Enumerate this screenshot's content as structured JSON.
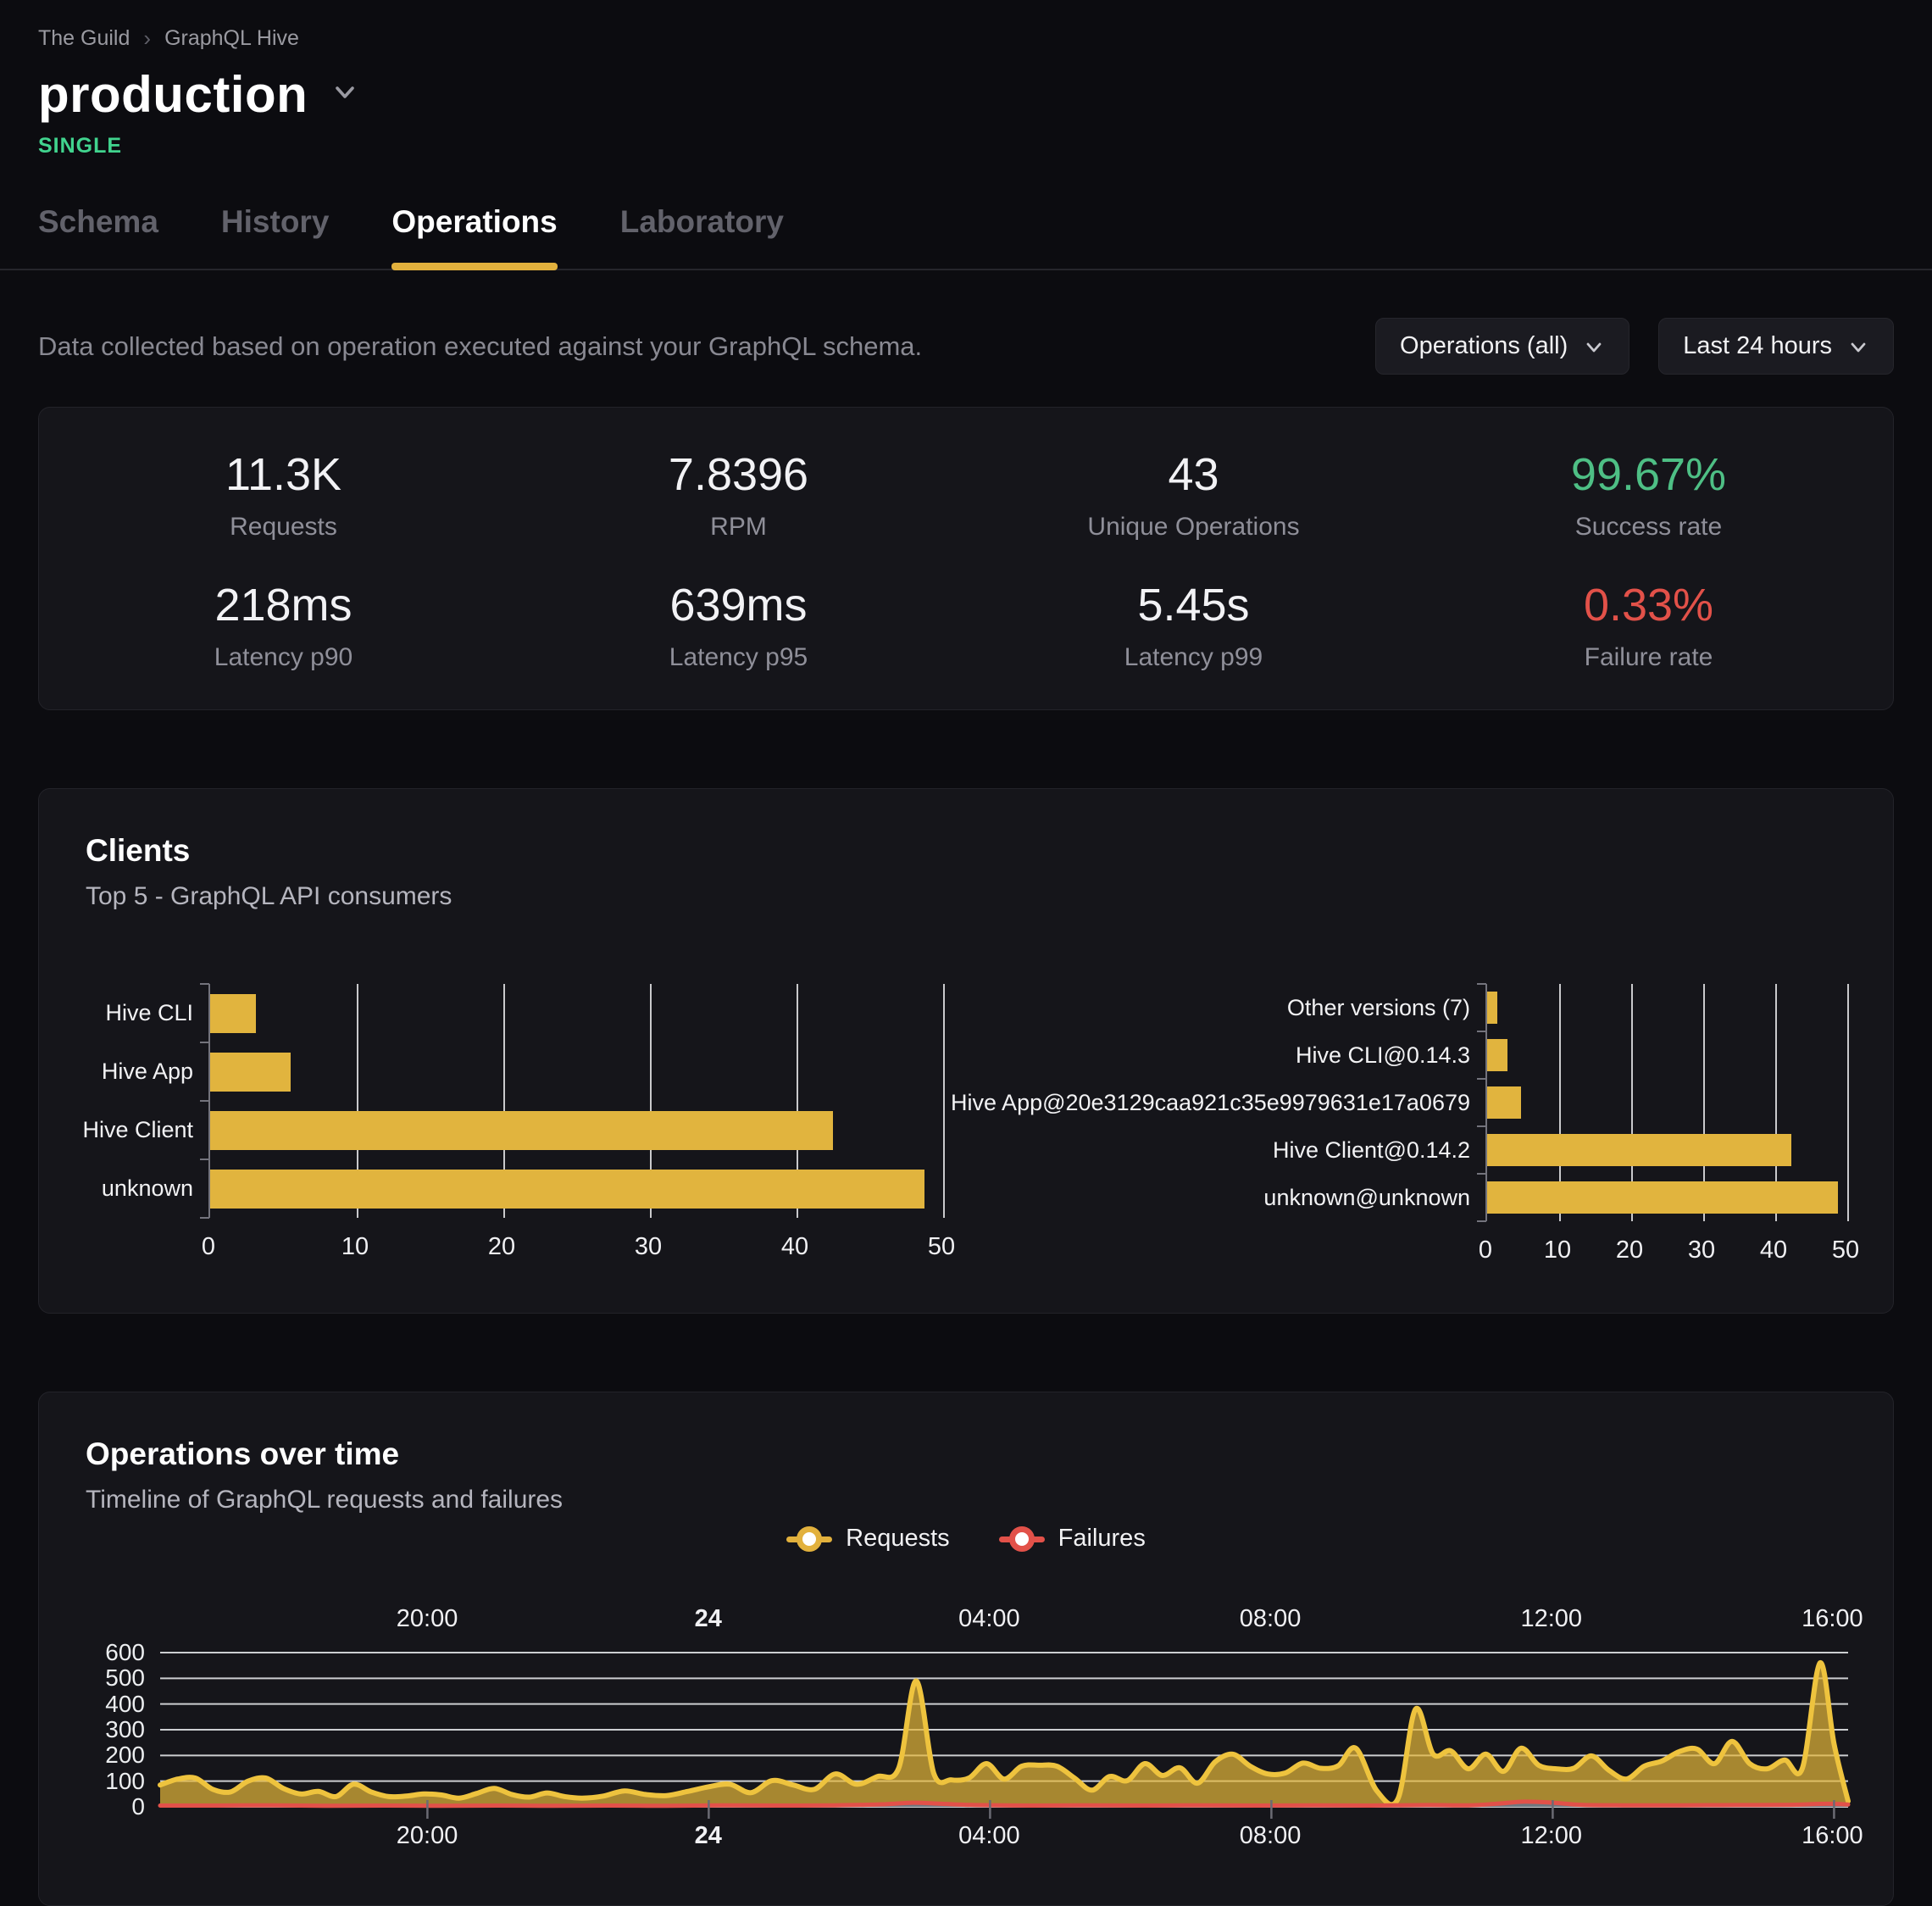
{
  "breadcrumb": {
    "items": [
      "The Guild",
      "GraphQL Hive"
    ],
    "separator": "›"
  },
  "header": {
    "title": "production",
    "badge": "SINGLE"
  },
  "tabs": [
    {
      "label": "Schema",
      "active": false
    },
    {
      "label": "History",
      "active": false
    },
    {
      "label": "Operations",
      "active": true
    },
    {
      "label": "Laboratory",
      "active": false
    }
  ],
  "toolbar": {
    "description": "Data collected based on operation executed against your GraphQL schema.",
    "operations_filter": "Operations (all)",
    "time_range": "Last 24 hours"
  },
  "stats": [
    {
      "value": "11.3K",
      "label": "Requests",
      "color": ""
    },
    {
      "value": "7.8396",
      "label": "RPM",
      "color": ""
    },
    {
      "value": "43",
      "label": "Unique Operations",
      "color": ""
    },
    {
      "value": "99.67%",
      "label": "Success rate",
      "color": "#4ebf85"
    },
    {
      "value": "218ms",
      "label": "Latency p90",
      "color": ""
    },
    {
      "value": "639ms",
      "label": "Latency p95",
      "color": ""
    },
    {
      "value": "5.45s",
      "label": "Latency p99",
      "color": ""
    },
    {
      "value": "0.33%",
      "label": "Failure rate",
      "color": "#e25149"
    }
  ],
  "clients_card": {
    "title": "Clients",
    "subtitle": "Top 5 - GraphQL API consumers"
  },
  "operations_card": {
    "title": "Operations over time",
    "subtitle": "Timeline of GraphQL requests and failures",
    "legend": [
      {
        "label": "Requests",
        "color": "#e2b13d"
      },
      {
        "label": "Failures",
        "color": "#e25149"
      }
    ]
  },
  "colors": {
    "accent_yellow": "#e1b43e",
    "requests_stroke": "#eec33e",
    "requests_fill": "rgba(229,184,58,0.70)",
    "failures_stroke": "#e25149",
    "failures_fill": "rgba(108,118,132,0.95)",
    "success_green": "#4ebf85",
    "badge_green": "#41d48e",
    "gridline": "#eceff1",
    "axis_gray": "#73737c"
  },
  "chart_data": [
    {
      "id": "clients_by_name",
      "type": "bar",
      "orientation": "horizontal",
      "categories": [
        "Hive CLI",
        "Hive App",
        "Hive Client",
        "unknown"
      ],
      "values": [
        3.1,
        5.5,
        42.5,
        48.7
      ],
      "xlim": [
        0,
        50
      ],
      "xticks": [
        0,
        10,
        20,
        30,
        40,
        50
      ],
      "bar_color": "#e1b43e",
      "grid": true,
      "legend_position": "none"
    },
    {
      "id": "clients_by_version",
      "type": "bar",
      "orientation": "horizontal",
      "categories": [
        "Other versions (7)",
        "Hive CLI@0.14.3",
        "Hive App@20e3129caa921c35e9979631e17a0679",
        "Hive Client@0.14.2",
        "unknown@unknown"
      ],
      "values": [
        1.4,
        2.8,
        4.7,
        42.2,
        48.7
      ],
      "xlim": [
        0,
        50
      ],
      "xticks": [
        0,
        10,
        20,
        30,
        40,
        50
      ],
      "bar_color": "#e1b43e",
      "grid": true,
      "legend_position": "none"
    },
    {
      "id": "operations_over_time",
      "type": "area",
      "title": "Operations over time",
      "x_domain_hours": [
        16.2,
        40.2
      ],
      "ylim": [
        0,
        600
      ],
      "yticks": [
        0,
        100,
        200,
        300,
        400,
        500,
        600
      ],
      "xticks": [
        {
          "t": 20,
          "label": "20:00",
          "bold": false
        },
        {
          "t": 24,
          "label": "24",
          "bold": true
        },
        {
          "t": 28,
          "label": "04:00",
          "bold": false
        },
        {
          "t": 32,
          "label": "08:00",
          "bold": false
        },
        {
          "t": 36,
          "label": "12:00",
          "bold": false
        },
        {
          "t": 40,
          "label": "16:00",
          "bold": false
        }
      ],
      "series": [
        {
          "name": "Requests",
          "color": "#eec33e",
          "fill": "rgba(229,184,58,0.70)",
          "points": [
            [
              16.2,
              85
            ],
            [
              16.45,
              108
            ],
            [
              16.7,
              112
            ],
            [
              16.95,
              68
            ],
            [
              17.2,
              58
            ],
            [
              17.45,
              100
            ],
            [
              17.7,
              112
            ],
            [
              17.95,
              72
            ],
            [
              18.2,
              50
            ],
            [
              18.45,
              60
            ],
            [
              18.7,
              40
            ],
            [
              18.95,
              88
            ],
            [
              19.2,
              58
            ],
            [
              19.45,
              40
            ],
            [
              19.7,
              42
            ],
            [
              19.95,
              50
            ],
            [
              20.2,
              46
            ],
            [
              20.45,
              34
            ],
            [
              20.7,
              52
            ],
            [
              20.95,
              72
            ],
            [
              21.2,
              48
            ],
            [
              21.45,
              38
            ],
            [
              21.7,
              54
            ],
            [
              21.95,
              40
            ],
            [
              22.2,
              34
            ],
            [
              22.5,
              42
            ],
            [
              22.8,
              62
            ],
            [
              23.1,
              48
            ],
            [
              23.4,
              44
            ],
            [
              23.7,
              60
            ],
            [
              24.0,
              78
            ],
            [
              24.3,
              88
            ],
            [
              24.6,
              55
            ],
            [
              24.9,
              102
            ],
            [
              25.2,
              85
            ],
            [
              25.5,
              68
            ],
            [
              25.8,
              128
            ],
            [
              26.1,
              88
            ],
            [
              26.4,
              118
            ],
            [
              26.7,
              150
            ],
            [
              26.95,
              490
            ],
            [
              27.2,
              130
            ],
            [
              27.45,
              105
            ],
            [
              27.7,
              112
            ],
            [
              27.95,
              168
            ],
            [
              28.2,
              108
            ],
            [
              28.45,
              158
            ],
            [
              28.7,
              162
            ],
            [
              28.95,
              158
            ],
            [
              29.2,
              112
            ],
            [
              29.45,
              65
            ],
            [
              29.7,
              118
            ],
            [
              29.95,
              102
            ],
            [
              30.2,
              168
            ],
            [
              30.45,
              122
            ],
            [
              30.7,
              152
            ],
            [
              30.95,
              92
            ],
            [
              31.2,
              175
            ],
            [
              31.45,
              205
            ],
            [
              31.7,
              158
            ],
            [
              31.95,
              128
            ],
            [
              32.2,
              132
            ],
            [
              32.45,
              170
            ],
            [
              32.7,
              150
            ],
            [
              32.95,
              160
            ],
            [
              33.2,
              228
            ],
            [
              33.5,
              62
            ],
            [
              33.8,
              32
            ],
            [
              34.05,
              380
            ],
            [
              34.3,
              205
            ],
            [
              34.55,
              218
            ],
            [
              34.8,
              148
            ],
            [
              35.05,
              205
            ],
            [
              35.3,
              138
            ],
            [
              35.55,
              228
            ],
            [
              35.8,
              162
            ],
            [
              36.05,
              148
            ],
            [
              36.3,
              150
            ],
            [
              36.55,
              198
            ],
            [
              36.8,
              142
            ],
            [
              37.05,
              108
            ],
            [
              37.3,
              158
            ],
            [
              37.55,
              178
            ],
            [
              37.8,
              215
            ],
            [
              38.05,
              225
            ],
            [
              38.3,
              168
            ],
            [
              38.55,
              255
            ],
            [
              38.8,
              168
            ],
            [
              39.05,
              148
            ],
            [
              39.3,
              182
            ],
            [
              39.55,
              150
            ],
            [
              39.8,
              560
            ],
            [
              40.0,
              245
            ],
            [
              40.2,
              22
            ]
          ]
        },
        {
          "name": "Failures",
          "color": "#e25149",
          "fill": "rgba(108,118,132,0.95)",
          "points": [
            [
              16.2,
              5
            ],
            [
              17.0,
              5
            ],
            [
              17.8,
              6
            ],
            [
              18.6,
              4
            ],
            [
              19.4,
              5
            ],
            [
              20.2,
              4
            ],
            [
              21.0,
              5
            ],
            [
              21.8,
              4
            ],
            [
              22.6,
              5
            ],
            [
              23.4,
              4
            ],
            [
              24.2,
              6
            ],
            [
              25.0,
              5
            ],
            [
              25.8,
              6
            ],
            [
              26.5,
              10
            ],
            [
              26.9,
              16
            ],
            [
              27.3,
              12
            ],
            [
              27.8,
              7
            ],
            [
              28.6,
              5
            ],
            [
              29.4,
              6
            ],
            [
              30.2,
              5
            ],
            [
              31.0,
              6
            ],
            [
              31.8,
              5
            ],
            [
              32.6,
              6
            ],
            [
              33.4,
              5
            ],
            [
              34.2,
              7
            ],
            [
              34.8,
              6
            ],
            [
              35.2,
              12
            ],
            [
              35.6,
              20
            ],
            [
              36.0,
              16
            ],
            [
              36.4,
              8
            ],
            [
              37.0,
              6
            ],
            [
              37.8,
              6
            ],
            [
              38.6,
              7
            ],
            [
              39.4,
              8
            ],
            [
              39.9,
              12
            ],
            [
              40.2,
              9
            ]
          ]
        }
      ],
      "legend_position": "top-center"
    }
  ]
}
